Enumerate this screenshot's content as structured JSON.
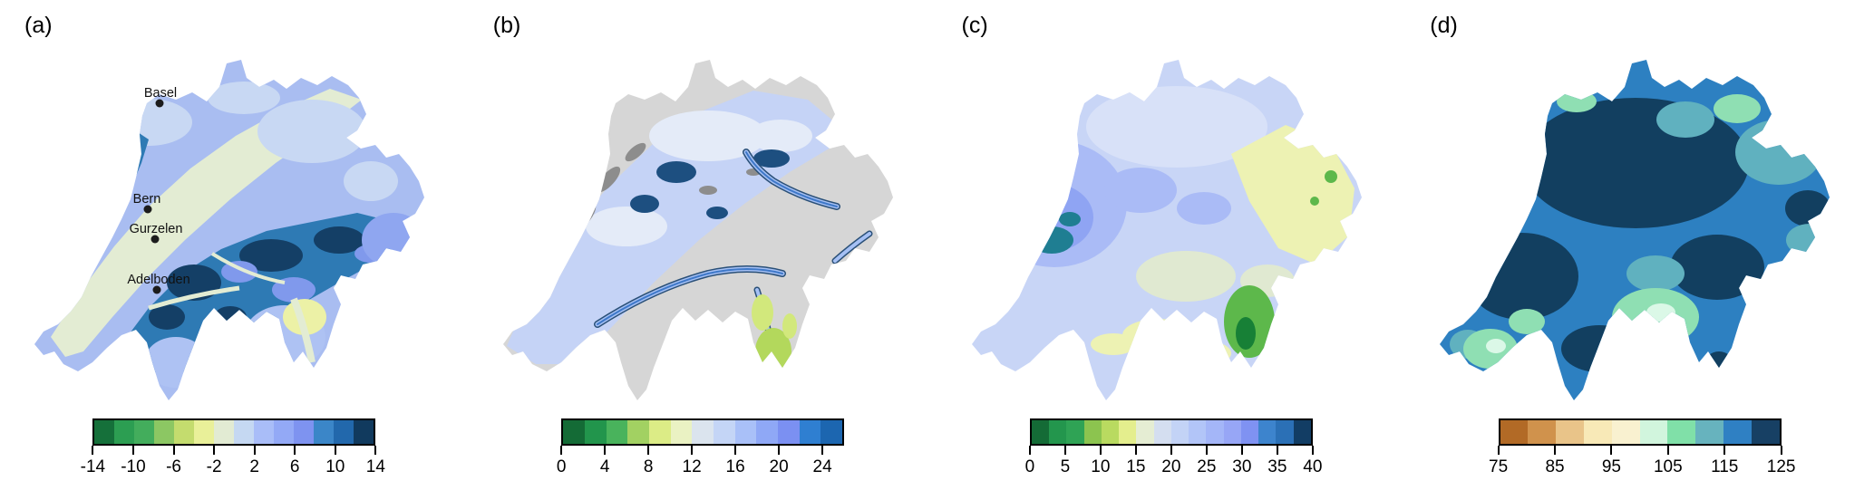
{
  "figure": {
    "panels": [
      {
        "id": "a",
        "label": "(a)",
        "cities": [
          {
            "name": "Basel"
          },
          {
            "name": "Bern"
          },
          {
            "name": "Gurzelen"
          },
          {
            "name": "Adelboden"
          }
        ],
        "colorbar": {
          "range": [
            -14,
            14
          ],
          "tick_values": [
            -14,
            -10,
            -6,
            -2,
            2,
            6,
            10,
            14
          ],
          "tick_labels": [
            "-14",
            "-10",
            "-6",
            "-2",
            "2",
            "6",
            "10",
            "14"
          ],
          "cell_colors": [
            "#15703a",
            "#2c9e52",
            "#43ad5c",
            "#8cc763",
            "#c4dc6e",
            "#e9f099",
            "#e2ebd3",
            "#c5d8f2",
            "#a9bdf8",
            "#93a9f6",
            "#7e93f0",
            "#3b86c8",
            "#2268ac",
            "#113a5e"
          ]
        }
      },
      {
        "id": "b",
        "label": "(b)",
        "cities": [],
        "colorbar": {
          "range": [
            0,
            26
          ],
          "tick_values": [
            0,
            4,
            8,
            12,
            16,
            20,
            24
          ],
          "tick_labels": [
            "0",
            "4",
            "8",
            "12",
            "16",
            "20",
            "24"
          ],
          "cell_colors": [
            "#146b36",
            "#22954c",
            "#49b35c",
            "#a2d162",
            "#dcec86",
            "#eaf2c3",
            "#dbe4ee",
            "#c4d5f6",
            "#a9c0f8",
            "#8fa8f6",
            "#7b90f2",
            "#2f7fd1",
            "#1c66b0"
          ]
        }
      },
      {
        "id": "c",
        "label": "(c)",
        "cities": [],
        "colorbar": {
          "range": [
            0,
            40
          ],
          "tick_values": [
            0,
            5,
            10,
            15,
            20,
            25,
            30,
            35,
            40
          ],
          "tick_labels": [
            "0",
            "5",
            "10",
            "15",
            "20",
            "25",
            "30",
            "35",
            "40"
          ],
          "cell_colors": [
            "#146b36",
            "#23964d",
            "#2fa355",
            "#8cc44f",
            "#b9da60",
            "#e4ee8d",
            "#e5edd3",
            "#d4def0",
            "#c3d3f6",
            "#b2c5f8",
            "#a4b6f8",
            "#97a6f6",
            "#7f92f2",
            "#3d84cd",
            "#2b70b6",
            "#123d64"
          ]
        }
      },
      {
        "id": "d",
        "label": "(d)",
        "cities": [],
        "colorbar": {
          "range": [
            75,
            125
          ],
          "tick_values": [
            75,
            85,
            95,
            105,
            115,
            125
          ],
          "tick_labels": [
            "75",
            "85",
            "95",
            "105",
            "115",
            "125"
          ],
          "cell_colors": [
            "#b26a26",
            "#d0924c",
            "#e9c489",
            "#f8e9b7",
            "#f9f1d0",
            "#d1f5dd",
            "#80e0a8",
            "#67b3be",
            "#2f80c3",
            "#174064"
          ]
        }
      }
    ]
  }
}
